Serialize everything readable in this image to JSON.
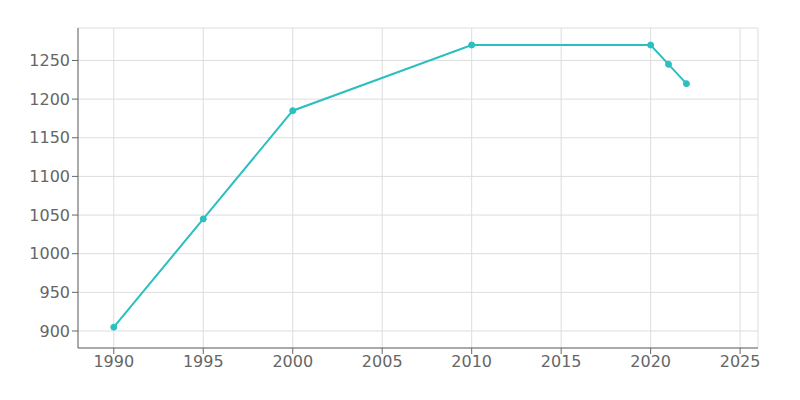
{
  "chart_data": {
    "type": "line",
    "x": [
      1990,
      1995,
      2000,
      2010,
      2020,
      2021,
      2022
    ],
    "values": [
      905,
      1045,
      1185,
      1270,
      1270,
      1245,
      1220
    ],
    "color": "#2bbfbf",
    "marker": "circle",
    "xlim": [
      1988,
      2026
    ],
    "ylim": [
      878,
      1292
    ],
    "xticks": [
      1990,
      1995,
      2000,
      2005,
      2010,
      2015,
      2020,
      2025
    ],
    "yticks": [
      900,
      950,
      1000,
      1050,
      1100,
      1150,
      1200,
      1250
    ],
    "grid": true
  }
}
